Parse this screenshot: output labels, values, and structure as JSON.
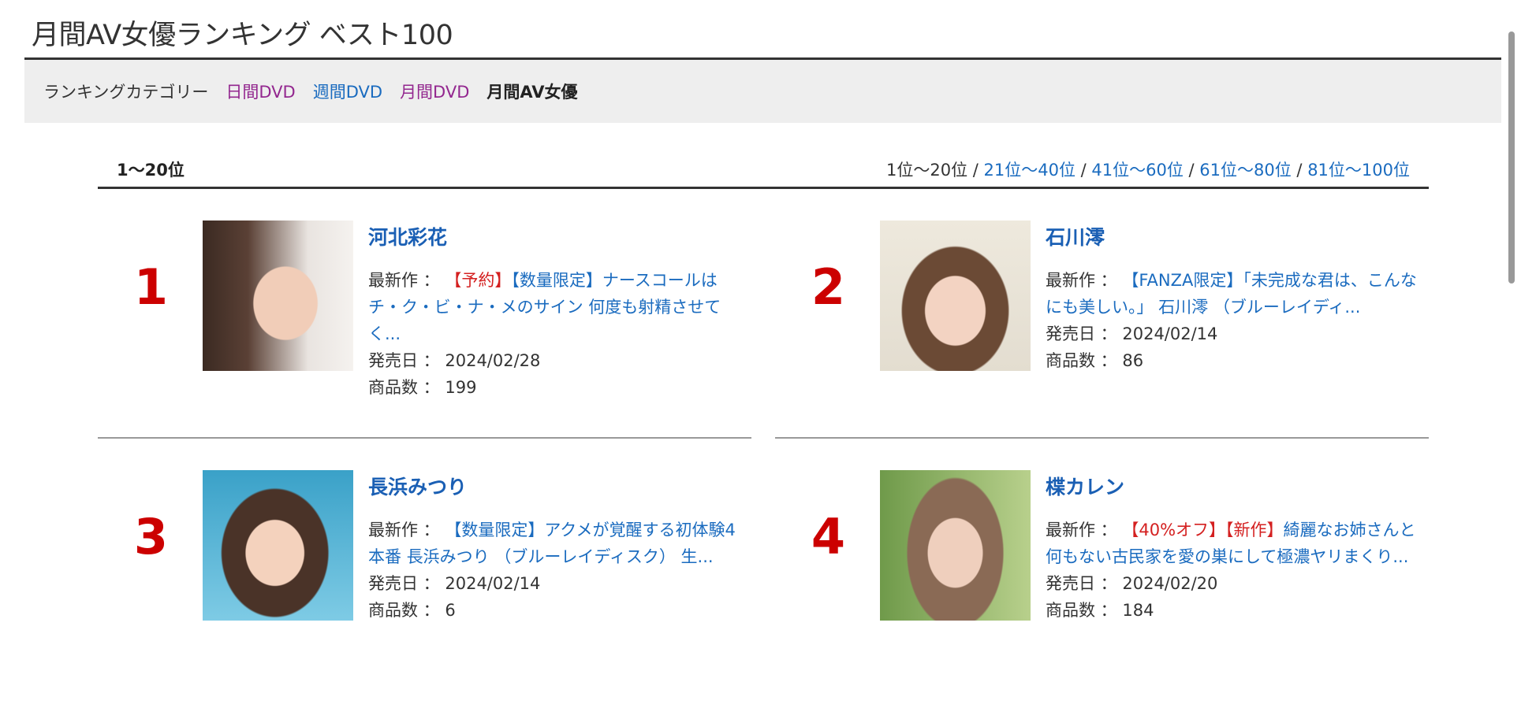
{
  "page_title": "月間AV女優ランキング ベスト100",
  "category_bar": {
    "label": "ランキングカテゴリー",
    "items": [
      {
        "label": "日間DVD"
      },
      {
        "label": "週間DVD"
      },
      {
        "label": "月間DVD"
      },
      {
        "label": "月間AV女優"
      }
    ]
  },
  "section": {
    "current_range": "1〜20位",
    "pager": [
      {
        "label": "1位〜20位"
      },
      {
        "label": "21位〜40位"
      },
      {
        "label": "41位〜60位"
      },
      {
        "label": "61位〜80位"
      },
      {
        "label": "81位〜100位"
      }
    ],
    "separator": " / "
  },
  "labels": {
    "latest": "最新作 ： ",
    "release": "発売日 ： ",
    "count": "商品数 ： "
  },
  "items": [
    {
      "rank": "1",
      "name": "河北彩花",
      "tags": [
        {
          "text": "【予約】",
          "color": "red"
        },
        {
          "text": "【数量限定】",
          "color": "blue"
        }
      ],
      "title": "ナースコールはチ・ク・ビ・ナ・メのサイン 何度も射精させてく...",
      "release": "2024/02/28",
      "count": "199"
    },
    {
      "rank": "2",
      "name": "石川澪",
      "tags": [
        {
          "text": "【FANZA限定】",
          "color": "blue"
        }
      ],
      "title": "「未完成な君は、こんなにも美しい。」 石川澪 （ブルーレイディ...",
      "release": "2024/02/14",
      "count": "86"
    },
    {
      "rank": "3",
      "name": "長浜みつり",
      "tags": [
        {
          "text": "【数量限定】",
          "color": "blue"
        }
      ],
      "title": "アクメが覚醒する初体験4本番 長浜みつり （ブルーレイディスク） 生...",
      "release": "2024/02/14",
      "count": "6"
    },
    {
      "rank": "4",
      "name": "楪カレン",
      "tags": [
        {
          "text": "【40%オフ】",
          "color": "red"
        },
        {
          "text": "【新作】",
          "color": "red"
        }
      ],
      "title": "綺麗なお姉さんと何もない古民家を愛の巣にして極濃ヤリまくり...",
      "release": "2024/02/20",
      "count": "184"
    }
  ],
  "colors": {
    "rank": "#cc0000",
    "link": "#1a6bbf",
    "visited": "#93278f",
    "sale": "#d42020"
  }
}
